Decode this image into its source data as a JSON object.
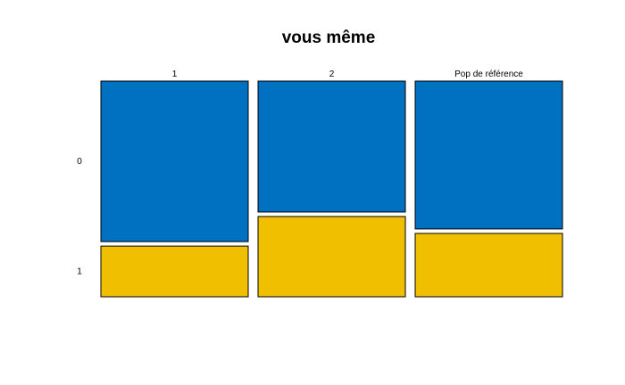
{
  "chart_data": {
    "type": "mosaic",
    "title": "vous même",
    "columns": [
      "1",
      "2",
      "Pop de référence"
    ],
    "rows": [
      "0",
      "1"
    ],
    "row_proportions": [
      [
        0.76,
        0.24
      ],
      [
        0.62,
        0.38
      ],
      [
        0.7,
        0.3
      ]
    ],
    "colors": {
      "0": "#0070C0",
      "1": "#F0C000"
    }
  }
}
